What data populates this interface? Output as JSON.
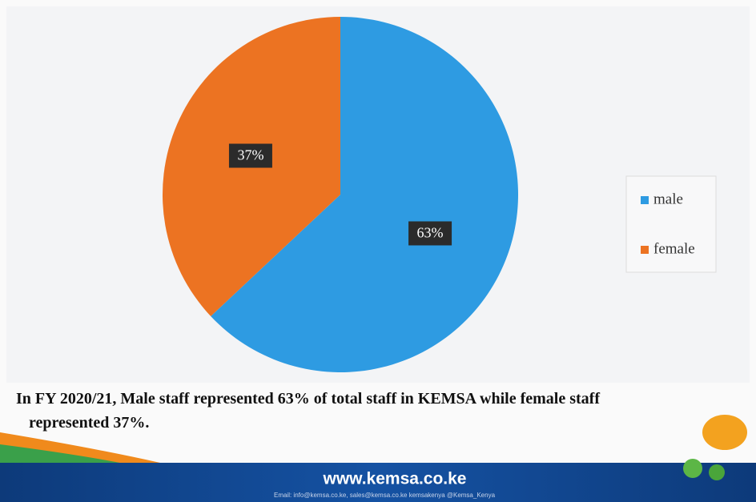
{
  "chart_data": {
    "type": "pie",
    "categories": [
      "male",
      "female"
    ],
    "values": [
      63,
      37
    ],
    "value_labels": [
      "63%",
      "37%"
    ],
    "colors": [
      "#2e9be2",
      "#ec7322"
    ],
    "legend": "right"
  },
  "caption": "In FY 2020/21, Male staff represented 63% of total staff in KEMSA while female staff represented 37%.",
  "footer": {
    "website": "www.kemsa.co.ke",
    "contacts": "Email: info@kemsa.co.ke, sales@kemsa.co.ke   kemsakenya   @Kemsa_Kenya"
  }
}
